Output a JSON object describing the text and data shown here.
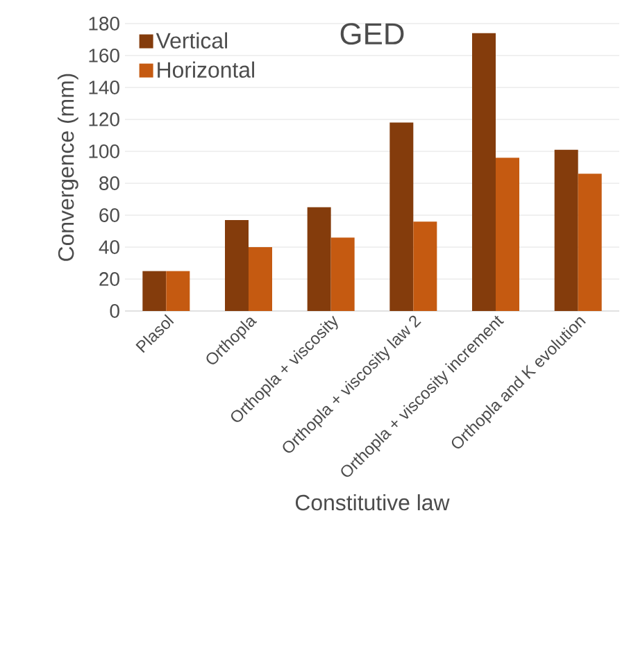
{
  "chart_data": {
    "type": "bar",
    "title": "GED",
    "xlabel": "Constitutive law",
    "ylabel": "Convergence (mm)",
    "categories": [
      "Plasol",
      "Orthopla",
      "Orthopla + viscosity",
      "Orthopla + viscosity law 2",
      "Orthopla + viscosity increment",
      "Orthopla and K evolution"
    ],
    "series": [
      {
        "name": "Vertical",
        "color": "#843c0c",
        "values": [
          25,
          57,
          65,
          118,
          174,
          101
        ]
      },
      {
        "name": "Horizontal",
        "color": "#c55a11",
        "values": [
          25,
          40,
          46,
          56,
          96,
          86
        ]
      }
    ],
    "ylim": [
      0,
      180
    ],
    "yticks": [
      0,
      20,
      40,
      60,
      80,
      100,
      120,
      140,
      160,
      180
    ],
    "grid": "y",
    "legend": "top left"
  }
}
